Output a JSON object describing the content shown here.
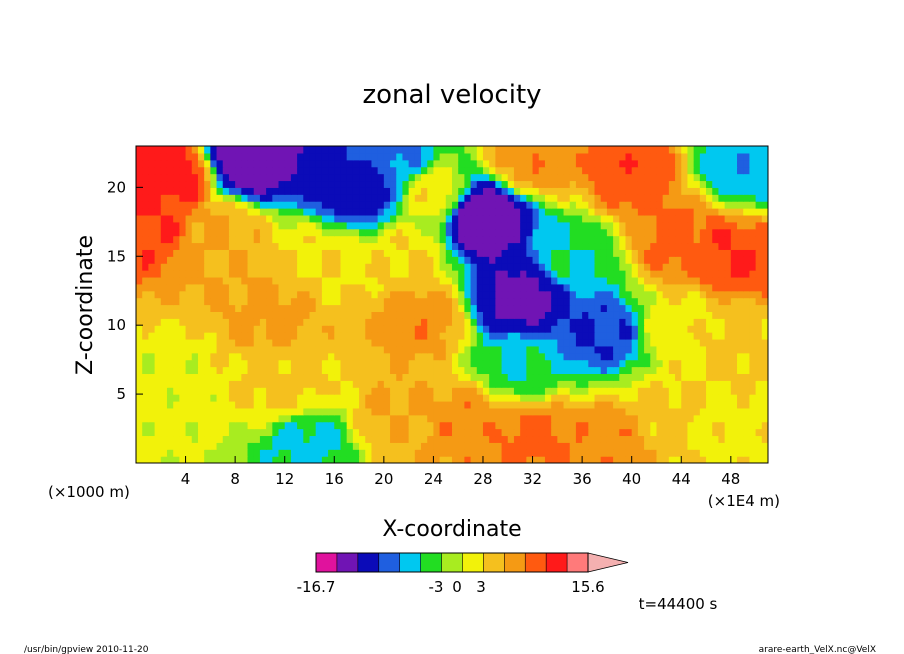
{
  "chart_data": {
    "type": "heatmap",
    "title": "zonal velocity",
    "xlabel": "X-coordinate",
    "ylabel": "Z-coordinate",
    "x_unit": "(×1E4 m)",
    "y_unit": "(×1000 m)",
    "x_ticks": [
      4,
      8,
      12,
      16,
      20,
      24,
      28,
      32,
      36,
      40,
      44,
      48
    ],
    "y_ticks": [
      5,
      10,
      15,
      20
    ],
    "xlim": [
      0,
      51
    ],
    "ylim": [
      0,
      23
    ],
    "colorbar": {
      "min_label": "-16.7",
      "max_label": "15.6",
      "tick_labels": [
        "-3",
        "0",
        "3"
      ],
      "colors": [
        "#e0129d",
        "#7014b4",
        "#0b0bb8",
        "#1f5fe0",
        "#00c8f0",
        "#22dd22",
        "#a8ec20",
        "#f2f20a",
        "#f5c01e",
        "#f59a14",
        "#ff5a10",
        "#ff1a1a",
        "#ff7a7a",
        "#f4b0b0"
      ]
    },
    "time_label": "t=44400 s",
    "regions": [
      {
        "x": 3,
        "z": 21,
        "u": 7
      },
      {
        "x": 9,
        "z": 22.2,
        "u": -12
      },
      {
        "x": 18,
        "z": 20,
        "u": -8
      },
      {
        "x": 20.5,
        "z": 22,
        "u": -5
      },
      {
        "x": 24,
        "z": 19.5,
        "u": 1
      },
      {
        "x": 28,
        "z": 17.8,
        "u": -12
      },
      {
        "x": 32,
        "z": 22,
        "u": 4
      },
      {
        "x": 40,
        "z": 21,
        "u": 5.5
      },
      {
        "x": 49,
        "z": 21.5,
        "u": -4
      },
      {
        "x": 1,
        "z": 17.5,
        "u": 6
      },
      {
        "x": 7,
        "z": 16.5,
        "u": 3
      },
      {
        "x": 15,
        "z": 14.5,
        "u": 1.5
      },
      {
        "x": 22,
        "z": 15,
        "u": 1.5
      },
      {
        "x": 31,
        "z": 12,
        "u": -10
      },
      {
        "x": 35,
        "z": 15,
        "u": -3
      },
      {
        "x": 44,
        "z": 16,
        "u": 5
      },
      {
        "x": 48,
        "z": 15,
        "u": 6
      },
      {
        "x": 11,
        "z": 11,
        "u": 3.5
      },
      {
        "x": 23,
        "z": 10.5,
        "u": 4
      },
      {
        "x": 31,
        "z": 7,
        "u": -3
      },
      {
        "x": 37.5,
        "z": 9.5,
        "u": -6
      },
      {
        "x": 44,
        "z": 10,
        "u": 1
      },
      {
        "x": 48.5,
        "z": 9,
        "u": 2
      },
      {
        "x": 3,
        "z": 6,
        "u": 0.5
      },
      {
        "x": 12,
        "z": 5.5,
        "u": 2
      },
      {
        "x": 14,
        "z": 1.5,
        "u": -3.5
      },
      {
        "x": 21,
        "z": 3.5,
        "u": 3
      },
      {
        "x": 27,
        "z": 3,
        "u": 4
      },
      {
        "x": 32,
        "z": 2,
        "u": 5
      },
      {
        "x": 38.5,
        "z": 1.5,
        "u": 4
      },
      {
        "x": 43,
        "z": 3,
        "u": 2
      },
      {
        "x": 47,
        "z": 2.5,
        "u": 1
      }
    ]
  },
  "footer": {
    "left": "/usr/bin/gpview   2010-11-20",
    "right": "arare-earth_VelX.nc@VelX"
  }
}
